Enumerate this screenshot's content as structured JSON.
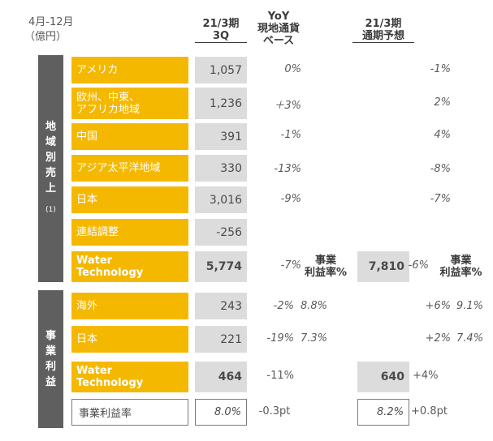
{
  "period": "4月-12月",
  "unit": "（億円）",
  "headers": {
    "q3": "21/3期\n3Q",
    "yoy": "YoY\n現地通貨\nベース",
    "full_year": "21/3期\n通期予想"
  },
  "sections": {
    "sales": {
      "label": "地\n域\n別\n売\n上",
      "note": "(1)"
    },
    "profit": {
      "label": "事\n業\n利\n益"
    }
  },
  "sales_rows": [
    {
      "label": "アメリカ",
      "q3": "1,057",
      "yoy": "0%",
      "fy_yoy": "-1%"
    },
    {
      "label": "欧州、中東、\nアフリカ地域",
      "q3": "1,236",
      "yoy": "＋3%",
      "fy_yoy": "2%"
    },
    {
      "label": "中国",
      "q3": "391",
      "yoy": "-1%",
      "fy_yoy": "4%"
    },
    {
      "label": "アジア太平洋地域",
      "q3": "330",
      "yoy": "-13%",
      "fy_yoy": "-8%"
    },
    {
      "label": "日本",
      "q3": "3,016",
      "yoy": "-9%",
      "fy_yoy": "-7%"
    },
    {
      "label": "連結調整",
      "q3": "-256",
      "yoy": "",
      "fy_yoy": ""
    }
  ],
  "sales_total": {
    "label": "Water\nTechnology",
    "q3": "5,774",
    "yoy": "-7%",
    "margin_label": "事業\n利益率%",
    "fy": "7,810",
    "fy_yoy": "-6%",
    "fy_margin_label": "事業\n利益率%"
  },
  "profit_rows": [
    {
      "label": "海外",
      "q3": "243",
      "yoy": "-2%",
      "margin": "8.8%",
      "fy_yoy": "+6%",
      "fy_margin": "9.1%"
    },
    {
      "label": "日本",
      "q3": "221",
      "yoy": "-19%",
      "margin": "7.3%",
      "fy_yoy": "+2%",
      "fy_margin": "7.4%"
    }
  ],
  "profit_total": {
    "label": "Water\nTechnology",
    "q3": "464",
    "yoy": "-11%",
    "fy": "640",
    "fy_yoy": "+4%"
  },
  "margin_row": {
    "label": "事業利益率",
    "q3": "8.0%",
    "yoy": "-0.3pt",
    "fy": "8.2%",
    "fy_yoy": "+0.8pt"
  },
  "colors": {
    "label_bg": "#f5b800",
    "value_bg": "#dcdcdc",
    "side_bg": "#5f5f5f"
  }
}
